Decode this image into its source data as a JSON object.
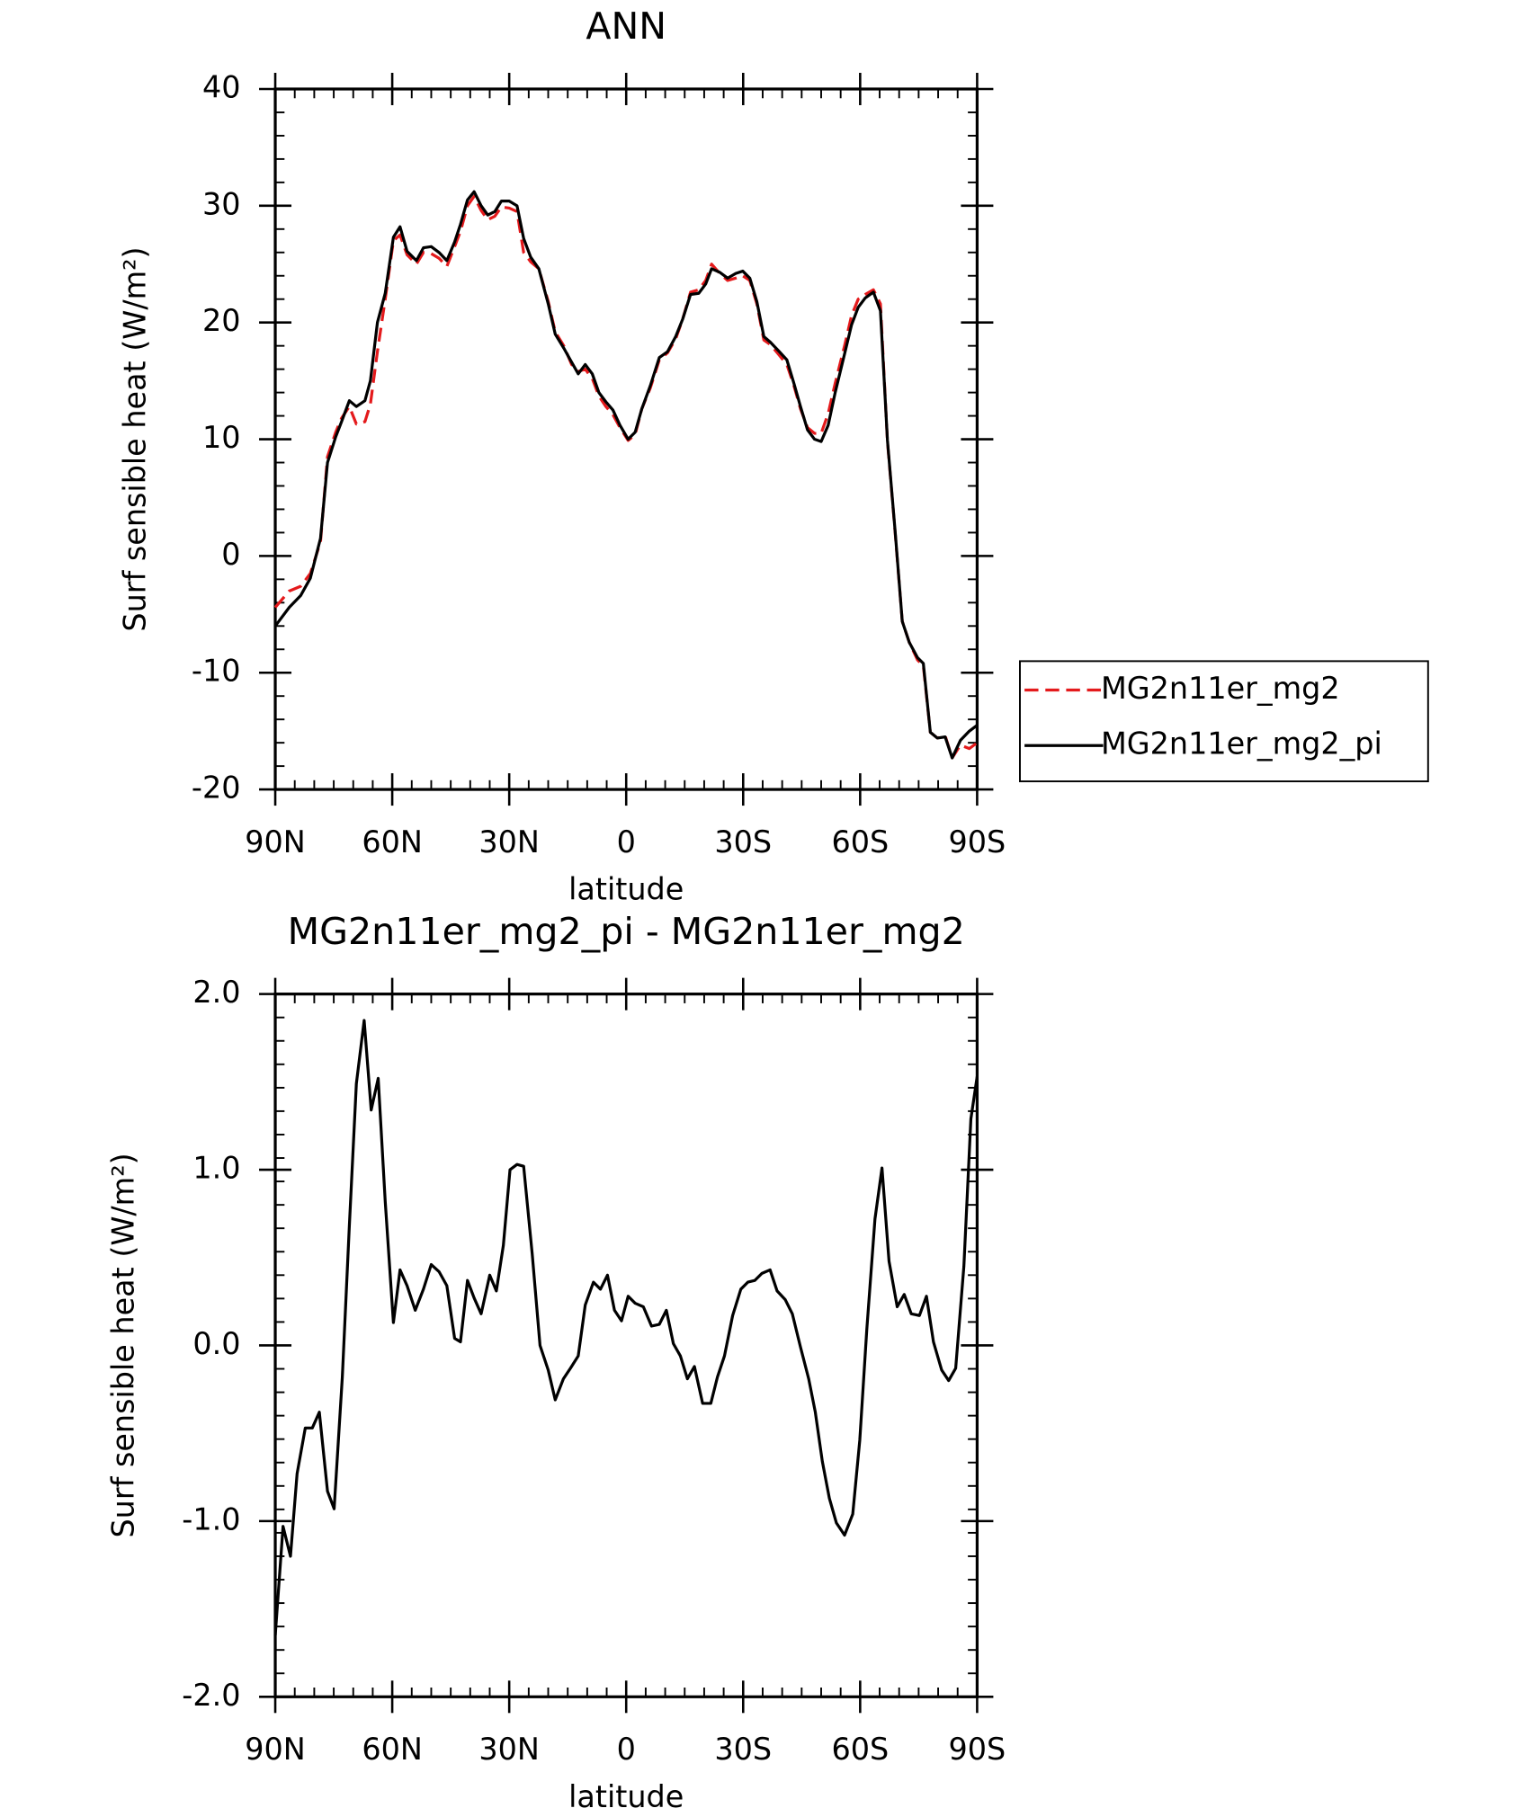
{
  "chart_data": [
    {
      "type": "line",
      "title": "ANN",
      "xlabel": "latitude",
      "ylabel": "Surf sensible heat (W/m²)",
      "x": [
        90,
        86.4,
        83.5,
        81,
        78.4,
        76.6,
        74.5,
        73,
        71,
        69.2,
        67,
        65.6,
        63.8,
        61.8,
        59.7,
        58,
        56.2,
        53.8,
        52,
        50,
        48,
        46,
        44,
        42.5,
        40.7,
        39,
        37.2,
        35.5,
        33.7,
        32,
        30,
        28,
        26.3,
        24.5,
        22.4,
        20,
        18.2,
        16,
        14,
        12.3,
        10.5,
        8.7,
        7,
        5.2,
        3.4,
        1.6,
        -0.5,
        -2.3,
        -4,
        -6.2,
        -8.5,
        -10.6,
        -12.7,
        -14.5,
        -16.5,
        -18.6,
        -20.4,
        -21.9,
        -24,
        -26,
        -28.1,
        -29.9,
        -31.7,
        -33.5,
        -35.3,
        -37,
        -39,
        -41.2,
        -43,
        -44.7,
        -46.5,
        -48.3,
        -50,
        -51.8,
        -53.6,
        -56,
        -57.8,
        -59.5,
        -61.3,
        -63.4,
        -65.2,
        -67,
        -69,
        -70.8,
        -72.6,
        -74.7,
        -76.2,
        -78,
        -79.8,
        -81.8,
        -83.6,
        -85.7,
        -88,
        -90
      ],
      "series": [
        {
          "name": "MG2n11er_mg2",
          "color": "#e41a1c",
          "dash": true,
          "values": [
            -4.4,
            -3,
            -2.6,
            -1.5,
            1.2,
            8.5,
            10.6,
            11.8,
            12.8,
            11.3,
            11.5,
            13,
            17.5,
            22,
            27,
            27.5,
            25.8,
            25,
            26,
            25.9,
            25.5,
            24.8,
            26.5,
            27.8,
            30,
            30.8,
            29.6,
            28.8,
            29.1,
            29.9,
            29.8,
            29.5,
            26,
            25.2,
            24.6,
            21.8,
            19.2,
            18,
            16.4,
            15.8,
            16,
            15.2,
            13.7,
            12.8,
            12.1,
            11,
            9.9,
            10.4,
            12.6,
            14.4,
            16.8,
            17.4,
            18.6,
            20.3,
            22.6,
            22.8,
            23.6,
            25,
            24.2,
            23.6,
            23.8,
            24,
            23.6,
            21.6,
            18.5,
            18.1,
            17.3,
            16.4,
            14.6,
            12.6,
            11,
            10.5,
            10.5,
            12.2,
            14.8,
            18,
            20.6,
            22,
            22.4,
            22.8,
            21.6,
            9.8,
            1.9,
            -5.6,
            -7.4,
            -8.9,
            -9.4,
            -15.1,
            -15.6,
            -15.4,
            -17.3,
            -16.2,
            -16.5,
            -16
          ]
        },
        {
          "name": "MG2n11er_mg2_pi",
          "color": "#000000",
          "dash": false,
          "values": [
            -6,
            -4.4,
            -3.4,
            -1.9,
            1.5,
            8,
            10.2,
            11.5,
            13.3,
            12.8,
            13.3,
            15,
            20,
            22.5,
            27.3,
            28.2,
            26.1,
            25.3,
            26.4,
            26.5,
            26,
            25.3,
            26.9,
            28.4,
            30.5,
            31.2,
            30,
            29.2,
            29.5,
            30.4,
            30.4,
            30,
            27.2,
            25.6,
            24.6,
            21.6,
            19,
            17.8,
            16.6,
            15.6,
            16.4,
            15.6,
            14,
            13.2,
            12.5,
            11.2,
            10,
            10.6,
            12.6,
            14.6,
            17,
            17.5,
            18.8,
            20.3,
            22.4,
            22.5,
            23.3,
            24.6,
            24.3,
            23.8,
            24.2,
            24.4,
            23.8,
            21.8,
            18.8,
            18.3,
            17.6,
            16.8,
            14.8,
            12.8,
            10.8,
            10,
            9.8,
            11.2,
            14,
            17.3,
            19.8,
            21.3,
            22.1,
            22.6,
            21,
            9.9,
            2,
            -5.6,
            -7.4,
            -8.7,
            -9.2,
            -15.1,
            -15.6,
            -15.5,
            -17.3,
            -15.8,
            -15,
            -14.5
          ]
        }
      ],
      "xlim": [
        90,
        -90
      ],
      "xticks": [
        {
          "value": 90,
          "label": "90N"
        },
        {
          "value": 60,
          "label": "60N"
        },
        {
          "value": 30,
          "label": "30N"
        },
        0,
        {
          "value": -30,
          "label": "30S"
        },
        {
          "value": -60,
          "label": "60S"
        },
        {
          "value": -90,
          "label": "90S"
        }
      ],
      "ylim": [
        -20,
        40
      ],
      "yticks": [
        40,
        30,
        20,
        10,
        0,
        -10,
        -20
      ],
      "grid": false,
      "legend": "outside right"
    },
    {
      "type": "line",
      "title": "MG2n11er_mg2_pi - MG2n11er_mg2",
      "xlabel": "latitude",
      "ylabel": "Surf sensible heat (W/m²)",
      "x": [
        90,
        88,
        86.1,
        84.4,
        82.3,
        80.5,
        78.7,
        76.6,
        74.9,
        72.8,
        71,
        69.2,
        67.2,
        65.4,
        63.6,
        61.8,
        59.7,
        58,
        56.2,
        54.1,
        52,
        50,
        48,
        46,
        44,
        42.5,
        40.7,
        39,
        37.2,
        35,
        33.3,
        31.5,
        29.8,
        28,
        26.3,
        24.1,
        22.1,
        20,
        18.2,
        16.1,
        14.3,
        12.3,
        10.5,
        8.4,
        6.6,
        4.8,
        3,
        1.2,
        -0.5,
        -2.3,
        -4.4,
        -6.5,
        -8.5,
        -10.3,
        -12.1,
        -13.9,
        -15.7,
        -17.5,
        -19.6,
        -21.7,
        -23.4,
        -25.2,
        -27.3,
        -29.4,
        -31.2,
        -33,
        -34.8,
        -36.9,
        -38.7,
        -40.8,
        -42.6,
        -44.7,
        -46.8,
        -48.5,
        -50.3,
        -52.1,
        -53.9,
        -56,
        -58.1,
        -59.9,
        -61.7,
        -63.8,
        -65.6,
        -67.4,
        -69.5,
        -71.3,
        -73.1,
        -75.2,
        -77,
        -78.8,
        -80.9,
        -82.7,
        -84.5,
        -86.6,
        -88.4,
        -90
      ],
      "series": [
        {
          "color": "#000000",
          "values": [
            -1.65,
            -1.03,
            -1.2,
            -0.73,
            -0.47,
            -0.47,
            -0.38,
            -0.83,
            -0.93,
            -0.18,
            0.68,
            1.49,
            1.85,
            1.34,
            1.52,
            0.82,
            0.13,
            0.43,
            0.34,
            0.2,
            0.32,
            0.46,
            0.42,
            0.34,
            0.04,
            0.02,
            0.37,
            0.27,
            0.18,
            0.4,
            0.31,
            0.57,
            1.0,
            1.03,
            1.02,
            0.52,
            0.0,
            -0.14,
            -0.31,
            -0.19,
            -0.13,
            -0.06,
            0.23,
            0.36,
            0.32,
            0.4,
            0.2,
            0.14,
            0.28,
            0.24,
            0.22,
            0.11,
            0.12,
            0.2,
            0.01,
            -0.06,
            -0.19,
            -0.12,
            -0.33,
            -0.33,
            -0.18,
            -0.06,
            0.17,
            0.32,
            0.36,
            0.37,
            0.41,
            0.43,
            0.31,
            0.26,
            0.18,
            -0.01,
            -0.19,
            -0.38,
            -0.66,
            -0.87,
            -1.01,
            -1.08,
            -0.96,
            -0.54,
            0.09,
            0.72,
            1.01,
            0.48,
            0.22,
            0.29,
            0.18,
            0.17,
            0.28,
            0.02,
            -0.14,
            -0.2,
            -0.13,
            0.45,
            1.29,
            1.53
          ]
        }
      ],
      "xlim": [
        90,
        -90
      ],
      "xticks": [
        {
          "value": 90,
          "label": "90N"
        },
        {
          "value": 60,
          "label": "60N"
        },
        {
          "value": 30,
          "label": "30N"
        },
        0,
        {
          "value": -30,
          "label": "30S"
        },
        {
          "value": -60,
          "label": "60S"
        },
        {
          "value": -90,
          "label": "90S"
        }
      ],
      "ylim": [
        -2,
        2
      ],
      "yticks": [
        {
          "value": 2,
          "label": "2.0"
        },
        {
          "value": 1,
          "label": "1.0"
        },
        {
          "value": 0,
          "label": "0.0"
        },
        {
          "value": -1,
          "label": "-1.0"
        },
        {
          "value": -2,
          "label": "-2.0"
        }
      ],
      "grid": false
    }
  ]
}
